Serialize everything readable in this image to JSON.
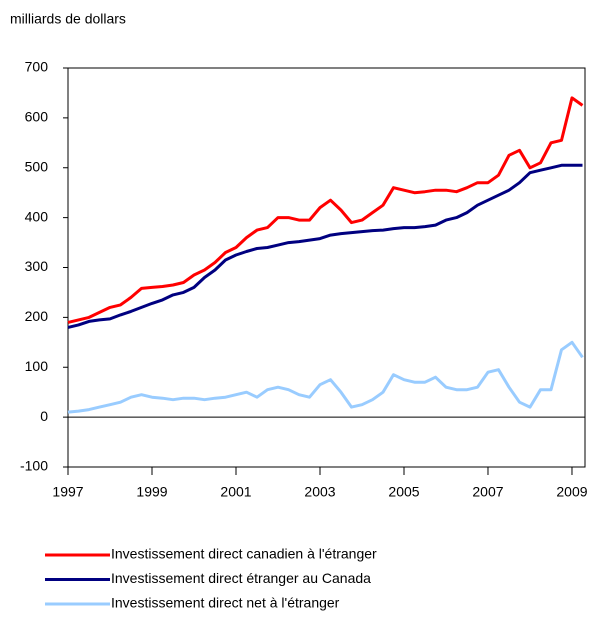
{
  "chart_data": {
    "type": "line",
    "y_axis_label": "milliards de dollars",
    "x": [
      1997,
      1997.25,
      1997.5,
      1997.75,
      1998,
      1998.25,
      1998.5,
      1998.75,
      1999,
      1999.25,
      1999.5,
      1999.75,
      2000,
      2000.25,
      2000.5,
      2000.75,
      2001,
      2001.25,
      2001.5,
      2001.75,
      2002,
      2002.25,
      2002.5,
      2002.75,
      2003,
      2003.25,
      2003.5,
      2003.75,
      2004,
      2004.25,
      2004.5,
      2004.75,
      2005,
      2005.25,
      2005.5,
      2005.75,
      2006,
      2006.25,
      2006.5,
      2006.75,
      2007,
      2007.25,
      2007.5,
      2007.75,
      2008,
      2008.25,
      2008.5,
      2008.75,
      2009,
      2009.25
    ],
    "series": [
      {
        "name": "Investissement direct canadien à l'étranger",
        "color": "#ff0000",
        "values": [
          190,
          195,
          200,
          210,
          220,
          225,
          240,
          258,
          260,
          262,
          265,
          270,
          285,
          295,
          310,
          330,
          340,
          360,
          375,
          380,
          400,
          400,
          395,
          395,
          420,
          435,
          415,
          390,
          395,
          410,
          425,
          460,
          455,
          450,
          452,
          455,
          455,
          452,
          460,
          470,
          470,
          485,
          525,
          535,
          500,
          510,
          550,
          555,
          640,
          625
        ]
      },
      {
        "name": "Investissement direct étranger au Canada",
        "color": "#000080",
        "values": [
          180,
          185,
          192,
          195,
          197,
          205,
          212,
          220,
          228,
          235,
          245,
          250,
          260,
          280,
          295,
          315,
          325,
          332,
          338,
          340,
          345,
          350,
          352,
          355,
          358,
          365,
          368,
          370,
          372,
          374,
          375,
          378,
          380,
          380,
          382,
          385,
          395,
          400,
          410,
          425,
          435,
          445,
          455,
          470,
          490,
          495,
          500,
          505,
          505,
          505
        ]
      },
      {
        "name": "Investissement direct net à l'étranger",
        "color": "#99ccff",
        "values": [
          10,
          12,
          15,
          20,
          25,
          30,
          40,
          45,
          40,
          38,
          35,
          38,
          38,
          35,
          38,
          40,
          45,
          50,
          40,
          55,
          60,
          55,
          45,
          40,
          65,
          75,
          50,
          20,
          25,
          35,
          50,
          85,
          75,
          70,
          70,
          80,
          60,
          55,
          55,
          60,
          90,
          95,
          60,
          30,
          20,
          55,
          55,
          135,
          150,
          120
        ]
      }
    ],
    "xlim": [
      1997,
      2009.31
    ],
    "xticks": [
      1997,
      1999,
      2001,
      2003,
      2005,
      2007,
      2009
    ],
    "ylim": [
      -100,
      700
    ],
    "yticks": [
      -100,
      0,
      100,
      200,
      300,
      400,
      500,
      600,
      700
    ]
  }
}
